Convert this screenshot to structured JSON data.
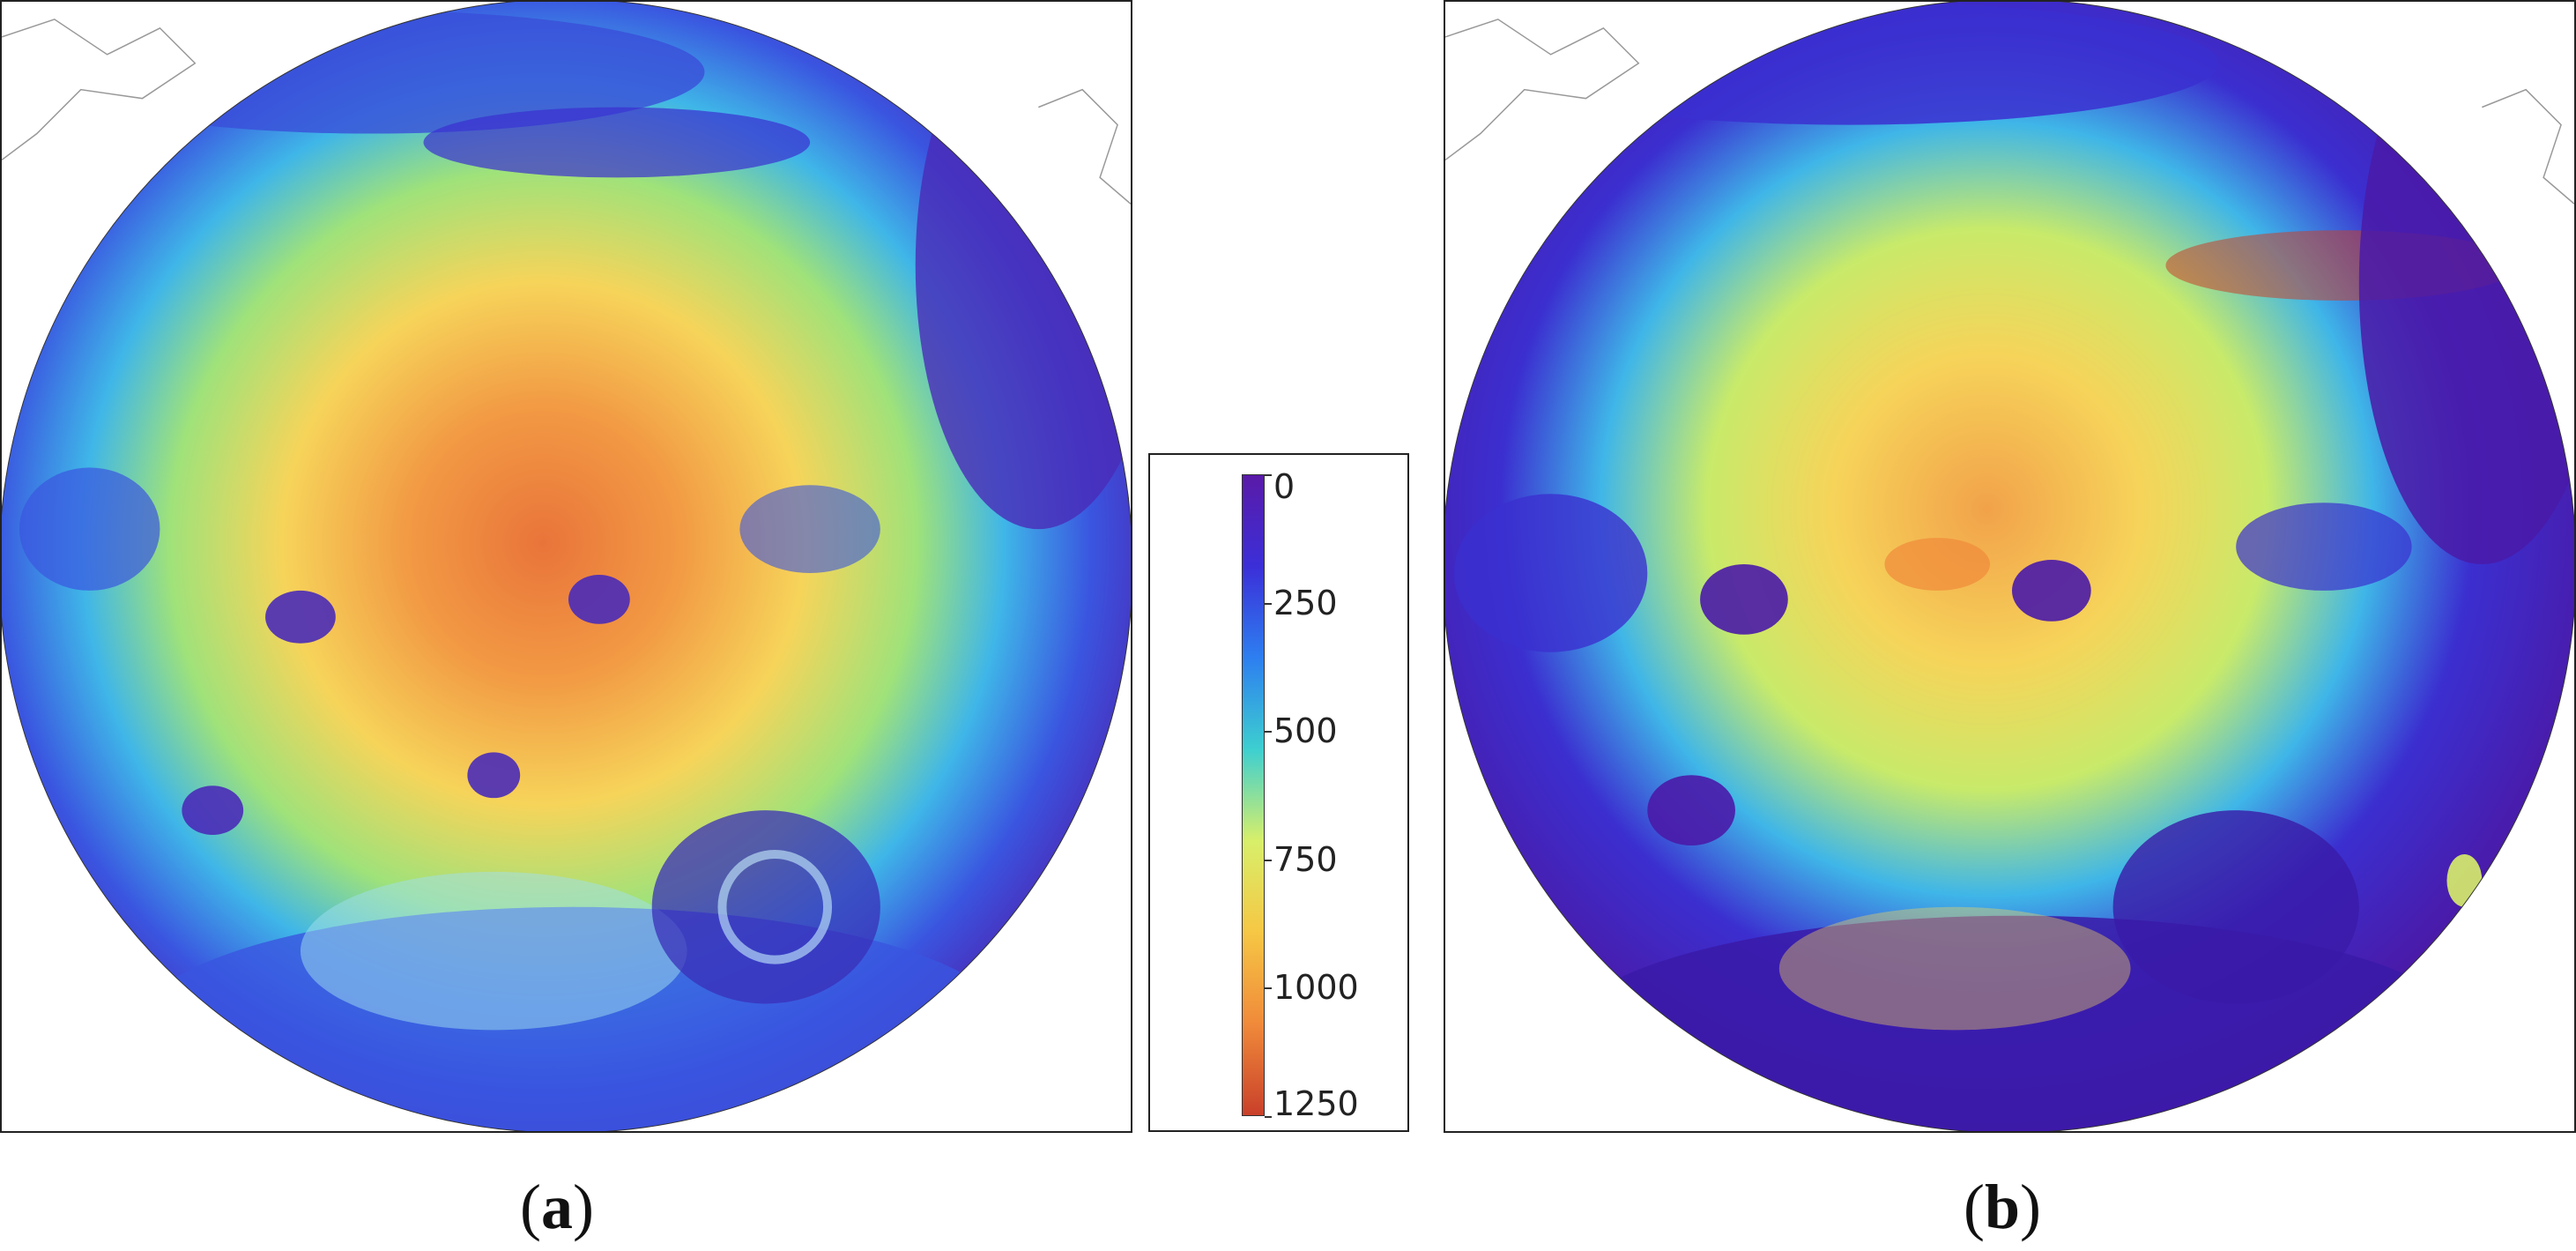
{
  "panels": [
    {
      "id": "a",
      "caption_open": "(",
      "caption_letter": "a",
      "caption_close": ")"
    },
    {
      "id": "b",
      "caption_open": "(",
      "caption_letter": "b",
      "caption_close": ")"
    }
  ],
  "colorbar": {
    "ticks": [
      "0",
      "250",
      "500",
      "750",
      "1000",
      "1250"
    ],
    "tick_values": [
      0,
      250,
      500,
      750,
      1000,
      1250
    ],
    "range": [
      0,
      1250
    ],
    "colors": [
      "#5a1aa8",
      "#3b2fd8",
      "#2d7ff0",
      "#3dcfd0",
      "#d8ef6a",
      "#f6c744",
      "#f08a3a",
      "#c9402a"
    ]
  }
}
